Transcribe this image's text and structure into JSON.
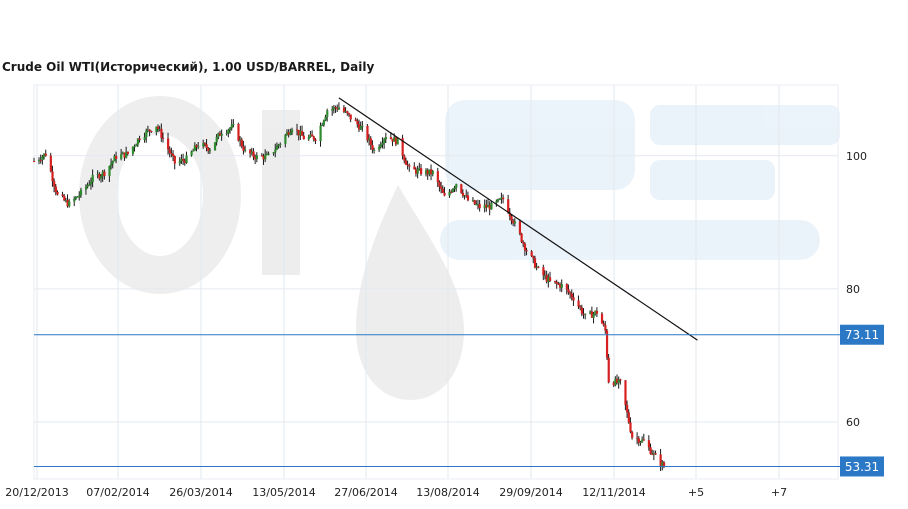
{
  "chart_data": {
    "type": "candlestick",
    "title": "Crude Oil WTI(Исторический), 1.00 USD/BARREL, Daily",
    "x_ticks": [
      "20/12/2013",
      "07/02/2014",
      "26/03/2014",
      "13/05/2014",
      "27/06/2014",
      "13/08/2014",
      "29/09/2014",
      "12/11/2014",
      "+5",
      "+7"
    ],
    "y_ticks": [
      100,
      80,
      60
    ],
    "ylim": [
      52,
      110
    ],
    "grid": true,
    "levels": [
      {
        "label": "73.11",
        "value": 73.11,
        "color": "#2a78c6"
      },
      {
        "label": "53.31",
        "value": 53.31,
        "color": "#2a78c6"
      }
    ],
    "trendline": {
      "from": {
        "date": "2014-06-20",
        "value": 108.7
      },
      "to": {
        "date": "2015-01-20",
        "value": 72.3
      }
    },
    "up_color": "#2e8b2e",
    "down_color": "#d62020",
    "anchors": [
      [
        "2013-12-20",
        99.2
      ],
      [
        "2013-12-27",
        100.3
      ],
      [
        "2014-01-03",
        94.0
      ],
      [
        "2014-01-10",
        92.7
      ],
      [
        "2014-01-17",
        94.4
      ],
      [
        "2014-01-24",
        96.6
      ],
      [
        "2014-01-31",
        97.5
      ],
      [
        "2014-02-07",
        99.9
      ],
      [
        "2014-02-14",
        100.3
      ],
      [
        "2014-02-21",
        102.8
      ],
      [
        "2014-03-03",
        104.6
      ],
      [
        "2014-03-07",
        102.6
      ],
      [
        "2014-03-14",
        98.9
      ],
      [
        "2014-03-21",
        99.5
      ],
      [
        "2014-03-28",
        101.7
      ],
      [
        "2014-04-04",
        101.1
      ],
      [
        "2014-04-11",
        103.7
      ],
      [
        "2014-04-18",
        104.3
      ],
      [
        "2014-04-25",
        100.6
      ],
      [
        "2014-05-02",
        99.8
      ],
      [
        "2014-05-09",
        99.9
      ],
      [
        "2014-05-16",
        102.0
      ],
      [
        "2014-05-23",
        104.4
      ],
      [
        "2014-05-30",
        102.7
      ],
      [
        "2014-06-06",
        102.7
      ],
      [
        "2014-06-13",
        106.9
      ],
      [
        "2014-06-20",
        107.3
      ],
      [
        "2014-06-27",
        105.7
      ],
      [
        "2014-07-04",
        104.0
      ],
      [
        "2014-07-11",
        100.8
      ],
      [
        "2014-07-18",
        103.1
      ],
      [
        "2014-07-25",
        102.1
      ],
      [
        "2014-08-01",
        97.9
      ],
      [
        "2014-08-08",
        97.6
      ],
      [
        "2014-08-15",
        97.4
      ],
      [
        "2014-08-22",
        93.7
      ],
      [
        "2014-08-29",
        95.9
      ],
      [
        "2014-09-05",
        93.3
      ],
      [
        "2014-09-12",
        92.3
      ],
      [
        "2014-09-19",
        92.4
      ],
      [
        "2014-09-26",
        93.5
      ],
      [
        "2014-10-03",
        89.7
      ],
      [
        "2014-10-10",
        85.8
      ],
      [
        "2014-10-17",
        82.8
      ],
      [
        "2014-10-24",
        81.0
      ],
      [
        "2014-10-31",
        80.5
      ],
      [
        "2014-11-07",
        78.7
      ],
      [
        "2014-11-14",
        75.8
      ],
      [
        "2014-11-21",
        76.5
      ],
      [
        "2014-11-26",
        73.7
      ],
      [
        "2014-11-28",
        66.2
      ],
      [
        "2014-12-05",
        65.8
      ],
      [
        "2014-12-12",
        57.8
      ],
      [
        "2014-12-19",
        57.1
      ],
      [
        "2014-12-26",
        54.7
      ],
      [
        "2014-12-31",
        53.3
      ]
    ]
  }
}
